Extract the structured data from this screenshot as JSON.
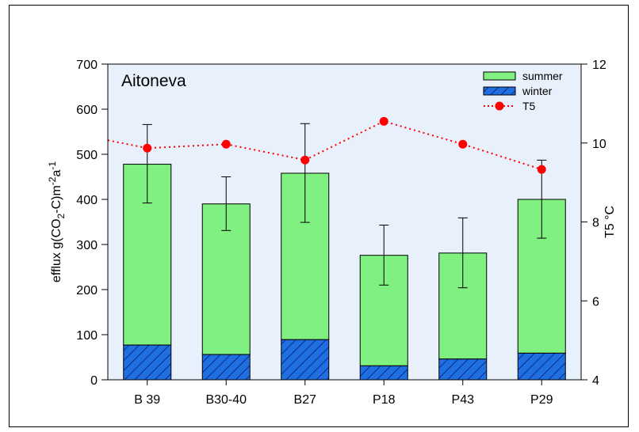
{
  "chart_data": {
    "type": "bar",
    "title": "Aitoneva",
    "categories": [
      "B 39",
      "B30-40",
      "B27",
      "P18",
      "P43",
      "P29"
    ],
    "series": [
      {
        "name": "winter",
        "kind": "stacked-bar",
        "values": [
          77,
          56,
          89,
          31,
          46,
          59
        ],
        "color": "#1f6fe0",
        "pattern": "hatched"
      },
      {
        "name": "summer",
        "kind": "stacked-bar",
        "values": [
          401,
          334,
          369,
          245,
          235,
          341
        ],
        "color": "#80f080"
      },
      {
        "name": "T5",
        "kind": "line",
        "axis": "right",
        "values": [
          9.87,
          9.97,
          9.57,
          10.55,
          9.97,
          9.33
        ],
        "color": "#ff0000",
        "line_style": "dotted",
        "marker": "circle"
      }
    ],
    "totals": [
      478,
      390,
      458,
      276,
      281,
      400
    ],
    "error_bars": {
      "lower": [
        392,
        331,
        349,
        210,
        204,
        314
      ],
      "upper": [
        566,
        450,
        568,
        343,
        359,
        487
      ]
    },
    "t5_line_left_start": 10.07,
    "ylabel_left": "efflux g(CO",
    "ylabel_left_sub": "2",
    "ylabel_left_mid": "-C)m",
    "ylabel_left_sup1": "-2",
    "ylabel_left_a": "a",
    "ylabel_left_sup2": "-1",
    "ylabel_right": "T5 °C",
    "ylim_left": [
      0,
      700
    ],
    "yticks_left": [
      "0",
      "100",
      "200",
      "300",
      "400",
      "500",
      "600",
      "700"
    ],
    "ylim_right": [
      4,
      12
    ],
    "yticks_right": [
      "4",
      "6",
      "8",
      "10",
      "12"
    ],
    "legend_position": "top-right",
    "legend": [
      "summer",
      "winter",
      "T5"
    ],
    "plot_background": "#e8f0fb"
  }
}
